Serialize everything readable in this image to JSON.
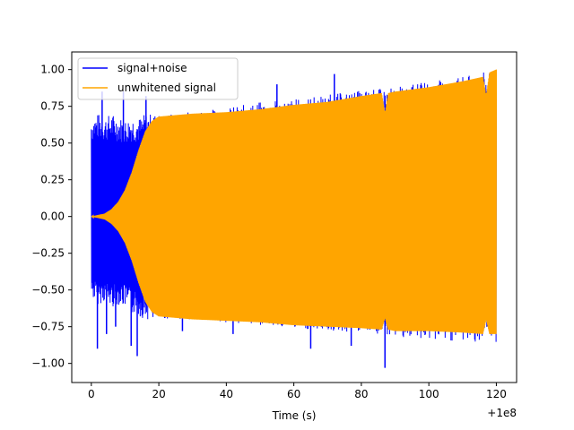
{
  "chart_data": {
    "type": "line",
    "xlabel": "Time (s)",
    "ylabel": "",
    "x_offset_label": "+1e8",
    "xlim": [
      -5.8,
      126
    ],
    "ylim": [
      -1.13,
      1.12
    ],
    "xticks": [
      0,
      20,
      40,
      60,
      80,
      100,
      120
    ],
    "xtick_labels": [
      "0",
      "20",
      "40",
      "60",
      "80",
      "100",
      "120"
    ],
    "yticks": [
      1.0,
      0.75,
      0.5,
      0.25,
      0.0,
      -0.25,
      -0.5,
      -0.75,
      -1.0
    ],
    "ytick_labels": [
      "1.00",
      "0.75",
      "0.50",
      "0.25",
      "0.00",
      "−0.25",
      "−0.50",
      "−0.75",
      "−1.00"
    ],
    "grid": false,
    "legend_position": "top-left",
    "series": [
      {
        "name": "signal+noise",
        "color": "#0000ff",
        "envelope": {
          "x": [
            0,
            2,
            4,
            6,
            8,
            10,
            12,
            14,
            16,
            18,
            20,
            25,
            30,
            40,
            50,
            60,
            70,
            80,
            90,
            100,
            110,
            120
          ],
          "upper": [
            0.68,
            0.7,
            0.68,
            0.7,
            0.68,
            0.66,
            0.68,
            0.67,
            0.7,
            0.7,
            0.7,
            0.7,
            0.72,
            0.74,
            0.78,
            0.8,
            0.83,
            0.86,
            0.88,
            0.92,
            0.95,
            1.0
          ],
          "lower": [
            -0.55,
            -0.6,
            -0.58,
            -0.62,
            -0.6,
            -0.62,
            -0.66,
            -0.68,
            -0.7,
            -0.7,
            -0.7,
            -0.7,
            -0.7,
            -0.72,
            -0.74,
            -0.76,
            -0.78,
            -0.8,
            -0.82,
            -0.84,
            -0.85,
            -0.86
          ]
        },
        "spikes": [
          {
            "x": 1.8,
            "y": -0.9
          },
          {
            "x": 3.2,
            "y": 0.85
          },
          {
            "x": 4.5,
            "y": -0.8
          },
          {
            "x": 7.2,
            "y": -0.75
          },
          {
            "x": 9.5,
            "y": 0.85
          },
          {
            "x": 11.8,
            "y": -0.88
          },
          {
            "x": 13.6,
            "y": -0.95
          },
          {
            "x": 16.2,
            "y": 0.82
          },
          {
            "x": 27,
            "y": -0.78
          },
          {
            "x": 42,
            "y": -0.8
          },
          {
            "x": 55,
            "y": 0.9
          },
          {
            "x": 65,
            "y": -0.9
          },
          {
            "x": 72,
            "y": 0.97
          },
          {
            "x": 77,
            "y": -0.88
          },
          {
            "x": 87,
            "y": -1.03
          },
          {
            "x": 95,
            "y": 0.88
          }
        ]
      },
      {
        "name": "unwhitened signal",
        "color": "#ffa500",
        "envelope": {
          "x": [
            0,
            2,
            4,
            6,
            8,
            10,
            12,
            14,
            16,
            18,
            20,
            30,
            40,
            50,
            60,
            70,
            80,
            86,
            87,
            88,
            90,
            100,
            110,
            116,
            117,
            118,
            120
          ],
          "upper": [
            0.0,
            0.01,
            0.02,
            0.05,
            0.1,
            0.18,
            0.3,
            0.45,
            0.58,
            0.65,
            0.68,
            0.7,
            0.71,
            0.73,
            0.76,
            0.78,
            0.82,
            0.84,
            0.7,
            0.84,
            0.85,
            0.88,
            0.92,
            0.95,
            0.82,
            0.98,
            1.0
          ],
          "lower": [
            0.0,
            -0.01,
            -0.02,
            -0.05,
            -0.1,
            -0.18,
            -0.3,
            -0.45,
            -0.58,
            -0.65,
            -0.68,
            -0.7,
            -0.71,
            -0.72,
            -0.74,
            -0.75,
            -0.76,
            -0.77,
            -0.69,
            -0.77,
            -0.78,
            -0.78,
            -0.79,
            -0.8,
            -0.7,
            -0.8,
            -0.8
          ]
        }
      }
    ]
  }
}
